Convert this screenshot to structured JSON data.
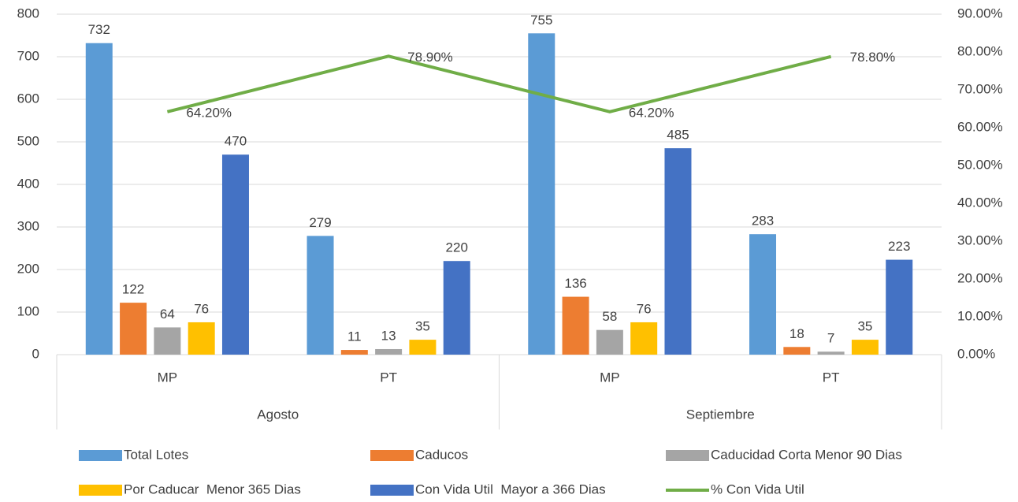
{
  "chart_data": {
    "type": "bar",
    "categories": [
      "MP",
      "PT",
      "MP",
      "PT"
    ],
    "group_labels": [
      "Agosto",
      "Septiembre"
    ],
    "series": [
      {
        "name": "Total Lotes",
        "color": "#5b9bd5",
        "values": [
          732,
          279,
          755,
          283
        ]
      },
      {
        "name": "Caducos",
        "color": "#ed7d31",
        "values": [
          122,
          11,
          136,
          18
        ]
      },
      {
        "name": "Caducidad Corta Menor 90 Dias",
        "color": "#a5a5a5",
        "values": [
          64,
          13,
          58,
          7
        ]
      },
      {
        "name": "Por Caducar  Menor 365 Dias",
        "color": "#ffc000",
        "values": [
          76,
          35,
          76,
          35
        ]
      },
      {
        "name": "Con Vida Util  Mayor a 366 Dias",
        "color": "#4472c4",
        "values": [
          470,
          220,
          485,
          223
        ]
      },
      {
        "name": "% Con Vida Util",
        "color": "#70ad47",
        "type": "line",
        "axis": "y2",
        "values": [
          64.2,
          78.9,
          64.2,
          78.8
        ],
        "value_labels": [
          "64.20%",
          "78.90%",
          "64.20%",
          "78.80%"
        ]
      }
    ],
    "ylim": [
      0,
      800
    ],
    "yticks": [
      0,
      100,
      200,
      300,
      400,
      500,
      600,
      700,
      800
    ],
    "y2lim": [
      0,
      90
    ],
    "y2ticks": [
      {
        "value": 0,
        "label": "0.00%"
      },
      {
        "value": 10,
        "label": "10.00%"
      },
      {
        "value": 20,
        "label": "20.00%"
      },
      {
        "value": 30,
        "label": "30.00%"
      },
      {
        "value": 40,
        "label": "40.00%"
      },
      {
        "value": 50,
        "label": "50.00%"
      },
      {
        "value": 60,
        "label": "60.00%"
      },
      {
        "value": 70,
        "label": "70.00%"
      },
      {
        "value": 80,
        "label": "80.00%"
      },
      {
        "value": 90,
        "label": "90.00%"
      }
    ],
    "grid": true,
    "legend": "bottom"
  }
}
